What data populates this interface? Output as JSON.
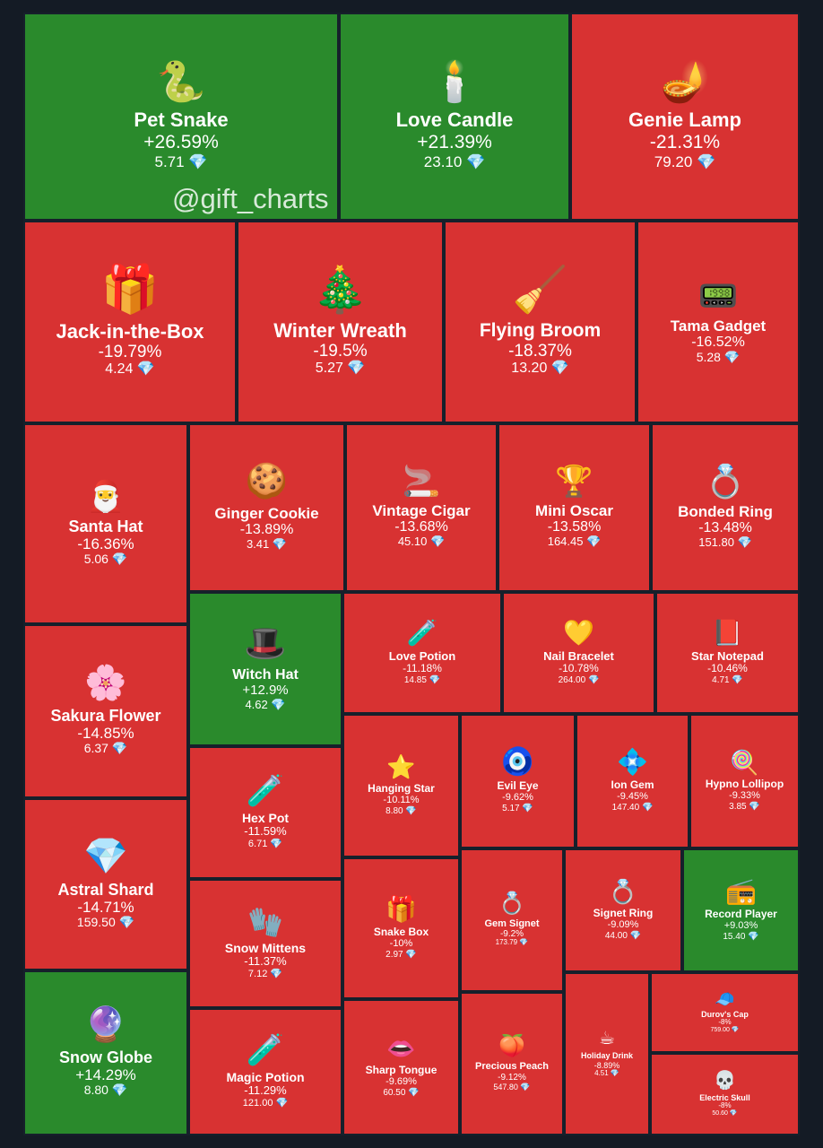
{
  "watermark": "@gift_charts",
  "currency_icon": "diamond-icon",
  "colors": {
    "positive": "#2a8a2c",
    "negative": "#d83232",
    "border": "#16202b",
    "background": "#141b25"
  },
  "chart_data": {
    "type": "treemap",
    "items": [
      {
        "name": "Pet Snake",
        "change": "+26.59%",
        "price": "5.71",
        "icon": "🐍",
        "direction": "up"
      },
      {
        "name": "Love Candle",
        "change": "+21.39%",
        "price": "23.10",
        "icon": "🕯️",
        "direction": "up"
      },
      {
        "name": "Genie Lamp",
        "change": "-21.31%",
        "price": "79.20",
        "icon": "🪔",
        "direction": "down"
      },
      {
        "name": "Jack-in-the-Box",
        "change": "-19.79%",
        "price": "4.24",
        "icon": "🎁",
        "direction": "down"
      },
      {
        "name": "Winter Wreath",
        "change": "-19.5%",
        "price": "5.27",
        "icon": "🎄",
        "direction": "down"
      },
      {
        "name": "Flying Broom",
        "change": "-18.37%",
        "price": "13.20",
        "icon": "🧹",
        "direction": "down"
      },
      {
        "name": "Tama Gadget",
        "change": "-16.52%",
        "price": "5.28",
        "icon": "📟",
        "direction": "down"
      },
      {
        "name": "Santa Hat",
        "change": "-16.36%",
        "price": "5.06",
        "icon": "🎅",
        "direction": "down"
      },
      {
        "name": "Ginger Cookie",
        "change": "-13.89%",
        "price": "3.41",
        "icon": "🍪",
        "direction": "down"
      },
      {
        "name": "Vintage Cigar",
        "change": "-13.68%",
        "price": "45.10",
        "icon": "🚬",
        "direction": "down"
      },
      {
        "name": "Mini Oscar",
        "change": "-13.58%",
        "price": "164.45",
        "icon": "🏆",
        "direction": "down"
      },
      {
        "name": "Bonded Ring",
        "change": "-13.48%",
        "price": "151.80",
        "icon": "💍",
        "direction": "down"
      },
      {
        "name": "Sakura Flower",
        "change": "-14.85%",
        "price": "6.37",
        "icon": "🌸",
        "direction": "down"
      },
      {
        "name": "Witch Hat",
        "change": "+12.9%",
        "price": "4.62",
        "icon": "🎩",
        "direction": "up"
      },
      {
        "name": "Love Potion",
        "change": "-11.18%",
        "price": "14.85",
        "icon": "🧪",
        "direction": "down"
      },
      {
        "name": "Nail Bracelet",
        "change": "-10.78%",
        "price": "264.00",
        "icon": "💛",
        "direction": "down"
      },
      {
        "name": "Star Notepad",
        "change": "-10.46%",
        "price": "4.71",
        "icon": "📕",
        "direction": "down"
      },
      {
        "name": "Astral Shard",
        "change": "-14.71%",
        "price": "159.50",
        "icon": "💎",
        "direction": "down"
      },
      {
        "name": "Hex Pot",
        "change": "-11.59%",
        "price": "6.71",
        "icon": "🧪",
        "direction": "down"
      },
      {
        "name": "Hanging Star",
        "change": "-10.11%",
        "price": "8.80",
        "icon": "⭐",
        "direction": "down"
      },
      {
        "name": "Evil Eye",
        "change": "-9.62%",
        "price": "5.17",
        "icon": "🧿",
        "direction": "down"
      },
      {
        "name": "Ion Gem",
        "change": "-9.45%",
        "price": "147.40",
        "icon": "💠",
        "direction": "down"
      },
      {
        "name": "Hypno Lollipop",
        "change": "-9.33%",
        "price": "3.85",
        "icon": "🍭",
        "direction": "down"
      },
      {
        "name": "Snow Mittens",
        "change": "-11.37%",
        "price": "7.12",
        "icon": "🧤",
        "direction": "down"
      },
      {
        "name": "Snake Box",
        "change": "-10%",
        "price": "2.97",
        "icon": "🎁",
        "direction": "down"
      },
      {
        "name": "Gem Signet",
        "change": "-9.2%",
        "price": "173.79",
        "icon": "💍",
        "direction": "down"
      },
      {
        "name": "Signet Ring",
        "change": "-9.09%",
        "price": "44.00",
        "icon": "💍",
        "direction": "down"
      },
      {
        "name": "Record Player",
        "change": "+9.03%",
        "price": "15.40",
        "icon": "📻",
        "direction": "up"
      },
      {
        "name": "Snow Globe",
        "change": "+14.29%",
        "price": "8.80",
        "icon": "🔮",
        "direction": "up"
      },
      {
        "name": "Magic Potion",
        "change": "-11.29%",
        "price": "121.00",
        "icon": "🧪",
        "direction": "down"
      },
      {
        "name": "Sharp Tongue",
        "change": "-9.69%",
        "price": "60.50",
        "icon": "👄",
        "direction": "down"
      },
      {
        "name": "Precious Peach",
        "change": "-9.12%",
        "price": "547.80",
        "icon": "🍑",
        "direction": "down"
      },
      {
        "name": "Holiday Drink",
        "change": "-8.89%",
        "price": "4.51",
        "icon": "☕",
        "direction": "down"
      },
      {
        "name": "Durov's Cap",
        "change": "-8%",
        "price": "759.00",
        "icon": "🧢",
        "direction": "down"
      },
      {
        "name": "Electric Skull",
        "change": "-8%",
        "price": "50.60",
        "icon": "💀",
        "direction": "down"
      }
    ]
  }
}
